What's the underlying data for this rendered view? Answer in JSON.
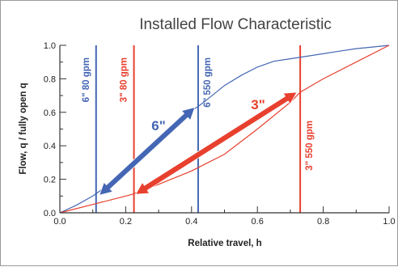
{
  "chart_data": {
    "type": "line",
    "title": "Installed Flow Characteristic",
    "xlabel": "Relative travel, h",
    "ylabel": "Flow, q / fully open q",
    "xlim": [
      0,
      1.0
    ],
    "ylim": [
      0,
      1.0
    ],
    "x_ticks": [
      "0.0",
      "0.2",
      "0.4",
      "0.6",
      "0.8",
      "1.0"
    ],
    "y_ticks": [
      "0.0",
      "0.2",
      "0.4",
      "0.6",
      "0.8",
      "1.0"
    ],
    "grid": false,
    "colors": {
      "blue": "#4466b4",
      "red": "#e8402e",
      "axis": "#333333"
    },
    "series": [
      {
        "color": "#4466b4",
        "x": [
          0,
          0.05,
          0.1,
          0.15,
          0.2,
          0.25,
          0.3,
          0.35,
          0.4,
          0.42,
          0.45,
          0.5,
          0.55,
          0.6,
          0.65,
          0.7,
          0.75,
          0.8,
          0.85,
          0.9,
          0.95,
          1.0
        ],
        "y": [
          0,
          0.045,
          0.1,
          0.17,
          0.25,
          0.33,
          0.43,
          0.53,
          0.61,
          0.635,
          0.68,
          0.76,
          0.82,
          0.87,
          0.905,
          0.92,
          0.935,
          0.95,
          0.965,
          0.98,
          0.99,
          1.0
        ]
      },
      {
        "color": "#e8402e",
        "x": [
          0,
          0.1,
          0.2,
          0.22,
          0.3,
          0.4,
          0.5,
          0.6,
          0.7,
          0.73,
          0.8,
          0.9,
          1.0
        ],
        "y": [
          0,
          0.05,
          0.1,
          0.11,
          0.17,
          0.25,
          0.35,
          0.5,
          0.66,
          0.72,
          0.8,
          0.9,
          1.0
        ]
      }
    ],
    "vlines": [
      {
        "x": 0.11,
        "color": "#4466b4",
        "label": "6\" 80 gpm"
      },
      {
        "x": 0.225,
        "color": "#e8402e",
        "label": "3\" 80 gpm"
      },
      {
        "x": 0.42,
        "color": "#4466b4",
        "label": "6\" 550 gpm"
      },
      {
        "x": 0.73,
        "color": "#e8402e",
        "label": "3\" 550 gpm"
      }
    ],
    "annotations": [
      {
        "label": "6\"",
        "color": "#4466b4",
        "from": [
          0.12,
          0.105
        ],
        "to": [
          0.41,
          0.63
        ]
      },
      {
        "label": "3\"",
        "color": "#e8402e",
        "from": [
          0.23,
          0.11
        ],
        "to": [
          0.72,
          0.72
        ]
      }
    ]
  }
}
